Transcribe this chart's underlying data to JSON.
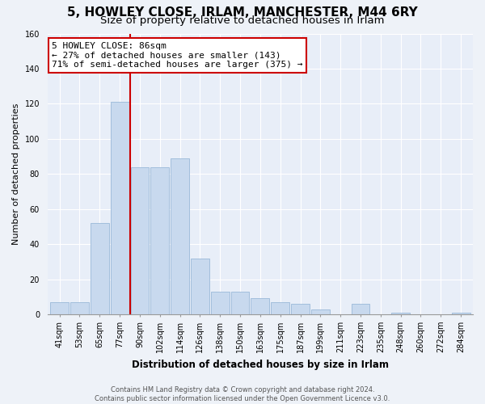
{
  "title": "5, HOWLEY CLOSE, IRLAM, MANCHESTER, M44 6RY",
  "subtitle": "Size of property relative to detached houses in Irlam",
  "xlabel": "Distribution of detached houses by size in Irlam",
  "ylabel": "Number of detached properties",
  "bar_labels": [
    "41sqm",
    "53sqm",
    "65sqm",
    "77sqm",
    "90sqm",
    "102sqm",
    "114sqm",
    "126sqm",
    "138sqm",
    "150sqm",
    "163sqm",
    "175sqm",
    "187sqm",
    "199sqm",
    "211sqm",
    "223sqm",
    "235sqm",
    "248sqm",
    "260sqm",
    "272sqm",
    "284sqm"
  ],
  "bar_heights": [
    7,
    7,
    52,
    121,
    84,
    84,
    89,
    32,
    13,
    13,
    9,
    7,
    6,
    3,
    0,
    6,
    0,
    1,
    0,
    0,
    1
  ],
  "bar_color": "#c8d9ee",
  "bar_edge_color": "#9ab8d8",
  "vline_bar_index": 3,
  "vline_color": "#cc0000",
  "annotation_line1": "5 HOWLEY CLOSE: 86sqm",
  "annotation_line2": "← 27% of detached houses are smaller (143)",
  "annotation_line3": "71% of semi-detached houses are larger (375) →",
  "annotation_box_color": "white",
  "annotation_box_edge": "#cc0000",
  "ylim": [
    0,
    160
  ],
  "yticks": [
    0,
    20,
    40,
    60,
    80,
    100,
    120,
    140,
    160
  ],
  "footer1": "Contains HM Land Registry data © Crown copyright and database right 2024.",
  "footer2": "Contains public sector information licensed under the Open Government Licence v3.0.",
  "bg_color": "#eef2f8",
  "plot_bg_color": "#e8eef8",
  "grid_color": "#ffffff",
  "title_fontsize": 11,
  "subtitle_fontsize": 9.5,
  "tick_fontsize": 7,
  "ylabel_fontsize": 8,
  "xlabel_fontsize": 8.5,
  "annotation_fontsize": 8,
  "footer_fontsize": 6
}
